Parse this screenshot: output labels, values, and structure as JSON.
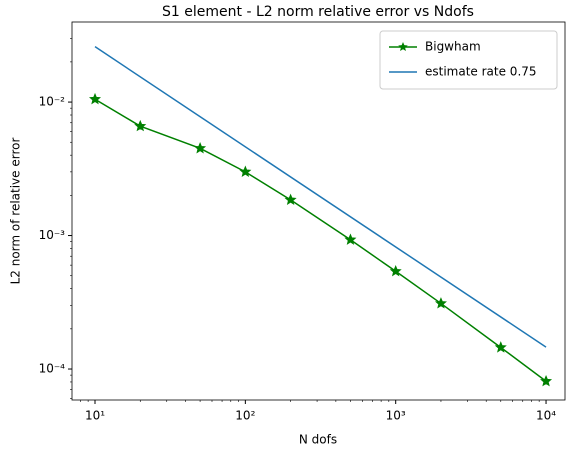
{
  "chart_data": {
    "type": "line",
    "title": "S1 element - L2 norm relative error vs Ndofs",
    "x_label": "N dofs",
    "y_label": "L2 norm of relative error",
    "x_scale": "log",
    "y_scale": "log",
    "legend": "upper right",
    "xlim": [
      7.03,
      13370
    ],
    "ylim": [
      5.86e-05,
      0.0398
    ],
    "xticks": [
      {
        "value": 10,
        "label": "10¹"
      },
      {
        "value": 100,
        "label": "10²"
      },
      {
        "value": 1000,
        "label": "10³"
      },
      {
        "value": 10000,
        "label": "10⁴"
      }
    ],
    "yticks": [
      {
        "value": 0.0001,
        "label": "10⁻⁴"
      },
      {
        "value": 0.001,
        "label": "10⁻³"
      },
      {
        "value": 0.01,
        "label": "10⁻²"
      }
    ],
    "series": [
      {
        "name": "Bigwham",
        "color": "#008000",
        "marker": "star",
        "x": [
          10,
          20,
          50,
          100,
          200,
          500,
          1000,
          2000,
          5000,
          10000
        ],
        "values": [
          0.0105,
          0.0066,
          0.0045,
          0.003,
          0.00185,
          0.00093,
          0.00054,
          0.00031,
          0.000145,
          8.1e-05
        ]
      },
      {
        "name": "estimate rate 0.75",
        "color": "#1f77b4",
        "x": [
          10,
          10000
        ],
        "values": [
          0.026,
          0.000146
        ]
      }
    ]
  }
}
